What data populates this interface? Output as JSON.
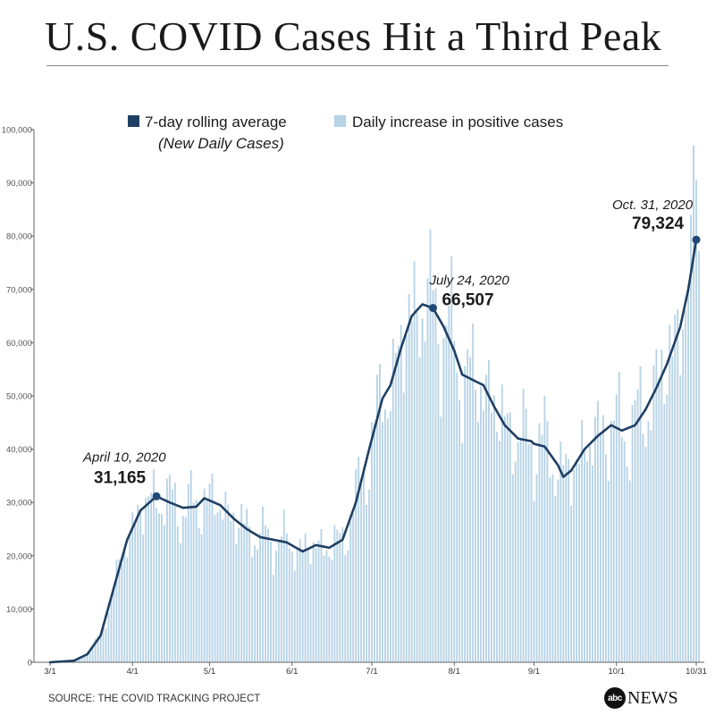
{
  "title": "U.S. COVID Cases Hit a Third Peak",
  "source": "SOURCE: THE COVID TRACKING PROJECT",
  "logo": {
    "mark": "abc",
    "text": "NEWS"
  },
  "colors": {
    "line": "#1f3f63",
    "bars": "#b7d3e6",
    "marker": "#1f4a78"
  },
  "chart_data": {
    "type": "bar",
    "title": "U.S. COVID Cases Hit a Third Peak",
    "legend": [
      {
        "label": "7-day rolling average",
        "sublabel": "(New Daily Cases)",
        "swatch": "line"
      },
      {
        "label": "Daily increase in positive cases",
        "sublabel": "",
        "swatch": "bars"
      }
    ],
    "legend_position": "top-center",
    "ylim": [
      0,
      100000
    ],
    "yticks": [
      0,
      10000,
      20000,
      30000,
      40000,
      50000,
      60000,
      70000,
      80000,
      90000,
      100000
    ],
    "ytick_labels": [
      "0",
      "10,000",
      "20,000",
      "30,000",
      "40,000",
      "50,000",
      "60,000",
      "70,000",
      "80,000",
      "90,000",
      "100,000"
    ],
    "x_start": "3/1/2020",
    "x_end": "10/31/2020",
    "xticks": [
      "3/1",
      "4/1",
      "5/1",
      "6/1",
      "7/1",
      "8/1",
      "9/1",
      "10/1",
      "10/31"
    ],
    "grid": false,
    "rolling_average_keypoints": [
      [
        "3/1",
        0
      ],
      [
        "3/10",
        300
      ],
      [
        "3/15",
        1500
      ],
      [
        "3/20",
        5000
      ],
      [
        "3/25",
        14000
      ],
      [
        "3/30",
        23000
      ],
      [
        "4/4",
        28500
      ],
      [
        "4/10",
        31165
      ],
      [
        "4/15",
        30000
      ],
      [
        "4/20",
        29000
      ],
      [
        "4/25",
        29200
      ],
      [
        "4/28",
        30800
      ],
      [
        "5/5",
        29500
      ],
      [
        "5/10",
        27000
      ],
      [
        "5/15",
        25000
      ],
      [
        "5/20",
        23500
      ],
      [
        "5/25",
        23000
      ],
      [
        "5/30",
        22500
      ],
      [
        "6/5",
        20800
      ],
      [
        "6/10",
        22000
      ],
      [
        "6/15",
        21500
      ],
      [
        "6/20",
        23000
      ],
      [
        "6/25",
        30000
      ],
      [
        "6/30",
        40000
      ],
      [
        "7/5",
        49500
      ],
      [
        "7/8",
        52000
      ],
      [
        "7/12",
        59000
      ],
      [
        "7/16",
        65000
      ],
      [
        "7/20",
        67200
      ],
      [
        "7/24",
        66507
      ],
      [
        "7/28",
        63000
      ],
      [
        "8/1",
        58500
      ],
      [
        "8/4",
        54000
      ],
      [
        "8/8",
        53000
      ],
      [
        "8/12",
        52000
      ],
      [
        "8/16",
        48000
      ],
      [
        "8/20",
        44500
      ],
      [
        "8/25",
        42000
      ],
      [
        "8/30",
        41500
      ],
      [
        "9/1",
        41000
      ],
      [
        "9/5",
        40500
      ],
      [
        "9/10",
        37000
      ],
      [
        "9/12",
        34800
      ],
      [
        "9/15",
        36000
      ],
      [
        "9/20",
        40000
      ],
      [
        "9/25",
        42500
      ],
      [
        "9/30",
        44500
      ],
      [
        "10/3",
        43500
      ],
      [
        "10/8",
        44500
      ],
      [
        "10/12",
        47500
      ],
      [
        "10/16",
        51500
      ],
      [
        "10/20",
        56000
      ],
      [
        "10/25",
        63000
      ],
      [
        "10/28",
        70000
      ],
      [
        "10/31",
        79324
      ]
    ],
    "daily_increase_note": "Daily bars fluctuate around the rolling average, peaking near 97,000 on 10/30.",
    "annotations": [
      {
        "date_label": "April 10, 2020",
        "value_label": "31,165",
        "x": "4/10",
        "y": 31165
      },
      {
        "date_label": "July 24, 2020",
        "value_label": "66,507",
        "x": "7/24",
        "y": 66507
      },
      {
        "date_label": "Oct. 31, 2020",
        "value_label": "79,324",
        "x": "10/31",
        "y": 79324
      }
    ]
  }
}
